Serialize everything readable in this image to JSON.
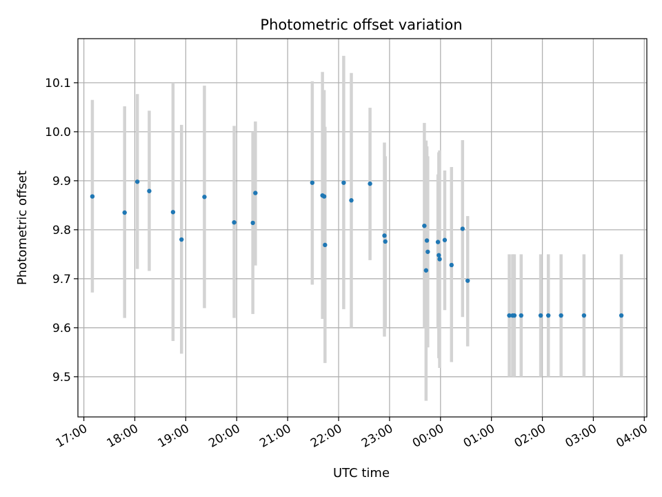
{
  "chart_data": {
    "type": "scatter",
    "title": "Photometric offset variation",
    "xlabel": "UTC time",
    "ylabel": "Photometric offset",
    "grid": true,
    "x_range": [
      "16:53",
      "04:03"
    ],
    "ylim": [
      9.418,
      10.19
    ],
    "x_ticks": [
      "17:00",
      "18:00",
      "19:00",
      "20:00",
      "21:00",
      "22:00",
      "23:00",
      "00:00",
      "01:00",
      "02:00",
      "03:00",
      "04:00"
    ],
    "y_ticks": [
      9.5,
      9.6,
      9.7,
      9.8,
      9.9,
      10.0,
      10.1
    ],
    "y_tick_labels": [
      "9.5",
      "9.6",
      "9.7",
      "9.8",
      "9.9",
      "10.0",
      "10.1"
    ],
    "colors": {
      "points": "#1f77b4",
      "error_bars": "#d3d3d3",
      "grid": "#b0b0b0"
    },
    "points": [
      {
        "t": "17:10",
        "y": 9.868,
        "lo": 9.672,
        "hi": 10.065
      },
      {
        "t": "17:48",
        "y": 9.835,
        "lo": 9.62,
        "hi": 10.052
      },
      {
        "t": "18:03",
        "y": 9.898,
        "lo": 9.72,
        "hi": 10.077
      },
      {
        "t": "18:17",
        "y": 9.879,
        "lo": 9.716,
        "hi": 10.043
      },
      {
        "t": "18:45",
        "y": 9.836,
        "lo": 9.573,
        "hi": 10.1
      },
      {
        "t": "18:55",
        "y": 9.78,
        "lo": 9.547,
        "hi": 10.014
      },
      {
        "t": "19:22",
        "y": 9.867,
        "lo": 9.64,
        "hi": 10.094
      },
      {
        "t": "19:57",
        "y": 9.815,
        "lo": 9.62,
        "hi": 10.012
      },
      {
        "t": "20:19",
        "y": 9.814,
        "lo": 9.628,
        "hi": 10.0
      },
      {
        "t": "20:22",
        "y": 9.875,
        "lo": 9.727,
        "hi": 10.021
      },
      {
        "t": "21:29",
        "y": 9.896,
        "lo": 9.688,
        "hi": 10.103
      },
      {
        "t": "21:41",
        "y": 9.87,
        "lo": 9.618,
        "hi": 10.122
      },
      {
        "t": "21:43",
        "y": 9.868,
        "lo": 9.65,
        "hi": 10.085
      },
      {
        "t": "21:44",
        "y": 9.769,
        "lo": 9.528,
        "hi": 10.01
      },
      {
        "t": "22:06",
        "y": 9.896,
        "lo": 9.638,
        "hi": 10.155
      },
      {
        "t": "22:15",
        "y": 9.86,
        "lo": 9.6,
        "hi": 10.12
      },
      {
        "t": "22:37",
        "y": 9.894,
        "lo": 9.738,
        "hi": 10.049
      },
      {
        "t": "22:54",
        "y": 9.788,
        "lo": 9.582,
        "hi": 9.978
      },
      {
        "t": "22:55",
        "y": 9.776,
        "lo": 9.6,
        "hi": 9.95
      },
      {
        "t": "23:41",
        "y": 9.808,
        "lo": 9.6,
        "hi": 10.018
      },
      {
        "t": "23:43",
        "y": 9.717,
        "lo": 9.451,
        "hi": 9.982
      },
      {
        "t": "23:44",
        "y": 9.778,
        "lo": 9.6,
        "hi": 9.97
      },
      {
        "t": "23:45",
        "y": 9.755,
        "lo": 9.56,
        "hi": 9.95
      },
      {
        "t": "23:57",
        "y": 9.775,
        "lo": 9.6,
        "hi": 9.913
      },
      {
        "t": "23:58",
        "y": 9.748,
        "lo": 9.538,
        "hi": 9.958
      },
      {
        "t": "23:59",
        "y": 9.74,
        "lo": 9.518,
        "hi": 9.962
      },
      {
        "t": "00:05",
        "y": 9.779,
        "lo": 9.636,
        "hi": 9.921
      },
      {
        "t": "00:13",
        "y": 9.728,
        "lo": 9.53,
        "hi": 9.928
      },
      {
        "t": "00:26",
        "y": 9.802,
        "lo": 9.622,
        "hi": 9.983
      },
      {
        "t": "00:32",
        "y": 9.696,
        "lo": 9.562,
        "hi": 9.828
      },
      {
        "t": "01:21",
        "y": 9.625,
        "lo": 9.5,
        "hi": 9.75
      },
      {
        "t": "01:25",
        "y": 9.625,
        "lo": 9.5,
        "hi": 9.75
      },
      {
        "t": "01:27",
        "y": 9.625,
        "lo": 9.5,
        "hi": 9.75
      },
      {
        "t": "01:35",
        "y": 9.625,
        "lo": 9.5,
        "hi": 9.75
      },
      {
        "t": "01:58",
        "y": 9.625,
        "lo": 9.5,
        "hi": 9.75
      },
      {
        "t": "02:07",
        "y": 9.625,
        "lo": 9.5,
        "hi": 9.75
      },
      {
        "t": "02:22",
        "y": 9.625,
        "lo": 9.5,
        "hi": 9.75
      },
      {
        "t": "02:49",
        "y": 9.625,
        "lo": 9.5,
        "hi": 9.75
      },
      {
        "t": "03:33",
        "y": 9.625,
        "lo": 9.5,
        "hi": 9.75
      }
    ]
  }
}
